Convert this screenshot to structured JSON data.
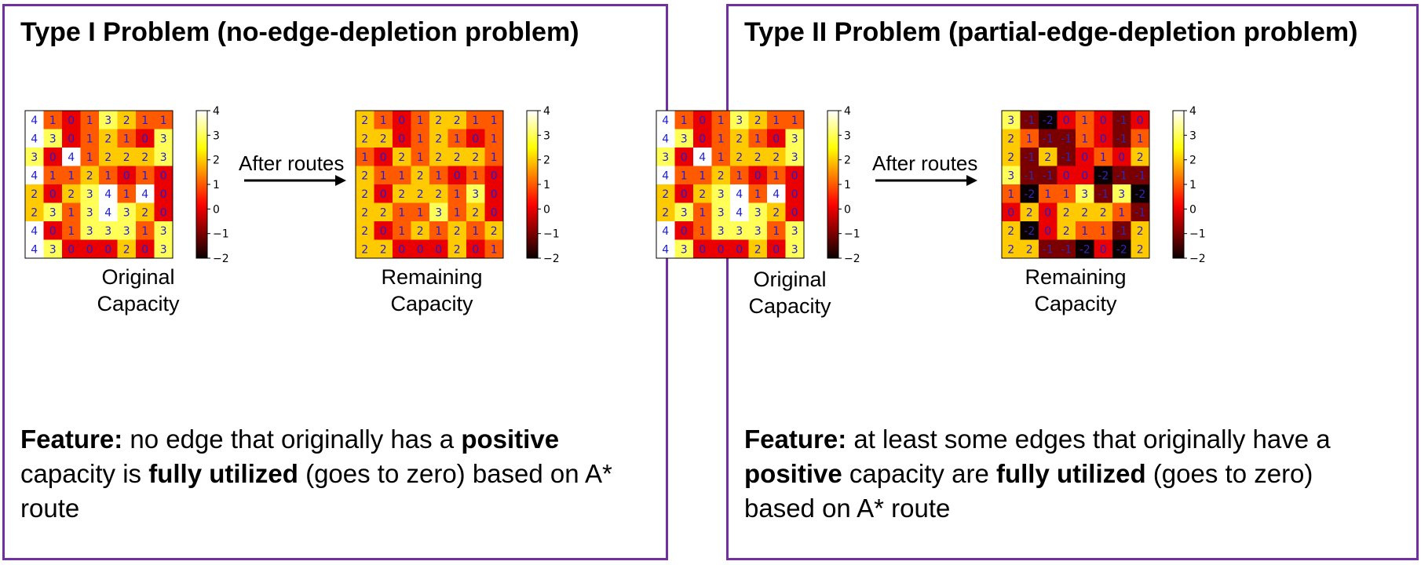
{
  "colors": {
    "border": "#7030a0",
    "cell_text_light": "#1d1dd6",
    "cell_text_dark": "#2a2ab8"
  },
  "colormap": "hot",
  "arrow_label": "After routes",
  "panels": [
    {
      "title": "Type I Problem (no-edge-depletion problem)",
      "original_caption": [
        "Original",
        "Capacity"
      ],
      "remaining_caption": [
        "Remaining",
        "Capacity"
      ],
      "feature": [
        {
          "text": "Feature:",
          "bold": true
        },
        {
          "text": " no edge that originally has a ",
          "bold": false
        },
        {
          "text": "positive",
          "bold": true
        },
        {
          "text": " capacity is ",
          "bold": false
        },
        {
          "text": "fully utilized",
          "bold": true
        },
        {
          "text": " (goes to zero) based on A* route",
          "bold": false
        }
      ]
    },
    {
      "title": "Type II Problem (partial-edge-depletion problem)",
      "original_caption": [
        "Original",
        "Capacity"
      ],
      "remaining_caption": [
        "Remaining",
        "Capacity"
      ],
      "feature": [
        {
          "text": "Feature:",
          "bold": true
        },
        {
          "text": " at least some edges that originally have a ",
          "bold": false
        },
        {
          "text": "positive",
          "bold": true
        },
        {
          "text": " capacity are ",
          "bold": false
        },
        {
          "text": "fully utilized",
          "bold": true
        },
        {
          "text": " (goes to zero) based on A* route",
          "bold": false
        }
      ]
    }
  ],
  "chart_data": [
    {
      "type": "heatmap",
      "panel": 1,
      "label": "Original Capacity",
      "vmin": -2,
      "vmax": 4,
      "colorbar_ticks": [
        "4",
        "3",
        "2",
        "1",
        "0",
        "−1",
        "−2"
      ],
      "grid": [
        [
          4,
          1,
          0,
          1,
          3,
          2,
          1,
          1
        ],
        [
          4,
          3,
          0,
          1,
          2,
          1,
          0,
          3
        ],
        [
          3,
          0,
          4,
          1,
          2,
          2,
          2,
          3
        ],
        [
          4,
          1,
          1,
          2,
          1,
          0,
          1,
          0
        ],
        [
          2,
          0,
          2,
          3,
          4,
          1,
          4,
          0
        ],
        [
          2,
          3,
          1,
          3,
          4,
          3,
          2,
          0
        ],
        [
          4,
          0,
          1,
          3,
          3,
          3,
          1,
          3
        ],
        [
          4,
          3,
          0,
          0,
          0,
          2,
          0,
          3
        ]
      ]
    },
    {
      "type": "heatmap",
      "panel": 1,
      "label": "Remaining Capacity",
      "vmin": -2,
      "vmax": 4,
      "colorbar_ticks": [
        "4",
        "3",
        "2",
        "1",
        "0",
        "−1",
        "−2"
      ],
      "grid": [
        [
          2,
          1,
          0,
          1,
          2,
          2,
          1,
          1
        ],
        [
          2,
          2,
          0,
          1,
          2,
          1,
          0,
          1
        ],
        [
          1,
          0,
          2,
          1,
          2,
          2,
          2,
          1
        ],
        [
          2,
          1,
          1,
          2,
          1,
          0,
          1,
          0
        ],
        [
          2,
          0,
          2,
          2,
          2,
          1,
          3,
          0
        ],
        [
          2,
          2,
          1,
          1,
          3,
          1,
          2,
          0
        ],
        [
          2,
          0,
          1,
          2,
          1,
          2,
          1,
          2
        ],
        [
          2,
          2,
          0,
          0,
          0,
          2,
          0,
          1
        ]
      ]
    },
    {
      "type": "heatmap",
      "panel": 2,
      "label": "Original Capacity",
      "vmin": -2,
      "vmax": 4,
      "colorbar_ticks": [
        "4",
        "3",
        "2",
        "1",
        "0",
        "−1",
        "−2"
      ],
      "grid": [
        [
          4,
          1,
          0,
          1,
          3,
          2,
          1,
          1
        ],
        [
          4,
          3,
          0,
          1,
          2,
          1,
          0,
          3
        ],
        [
          3,
          0,
          4,
          1,
          2,
          2,
          2,
          3
        ],
        [
          4,
          1,
          1,
          2,
          1,
          0,
          1,
          0
        ],
        [
          2,
          0,
          2,
          3,
          4,
          1,
          4,
          0
        ],
        [
          2,
          3,
          1,
          3,
          4,
          3,
          2,
          0
        ],
        [
          4,
          0,
          1,
          3,
          3,
          3,
          1,
          3
        ],
        [
          4,
          3,
          0,
          0,
          0,
          2,
          0,
          3
        ]
      ]
    },
    {
      "type": "heatmap",
      "panel": 2,
      "label": "Remaining Capacity",
      "vmin": -2,
      "vmax": 4,
      "colorbar_ticks": [
        "4",
        "3",
        "2",
        "1",
        "0",
        "−1",
        "−2"
      ],
      "grid": [
        [
          3,
          -1,
          -2,
          0,
          1,
          0,
          -1,
          0
        ],
        [
          2,
          1,
          -1,
          -1,
          1,
          0,
          -1,
          1
        ],
        [
          2,
          -1,
          2,
          -1,
          0,
          1,
          0,
          2
        ],
        [
          3,
          -1,
          -1,
          0,
          0,
          -2,
          -1,
          -1
        ],
        [
          1,
          -2,
          1,
          1,
          3,
          -1,
          3,
          -2
        ],
        [
          0,
          2,
          0,
          2,
          2,
          2,
          1,
          -1
        ],
        [
          2,
          -2,
          0,
          2,
          1,
          1,
          -1,
          2
        ],
        [
          2,
          2,
          -1,
          -1,
          -2,
          0,
          -2,
          2
        ]
      ]
    }
  ]
}
